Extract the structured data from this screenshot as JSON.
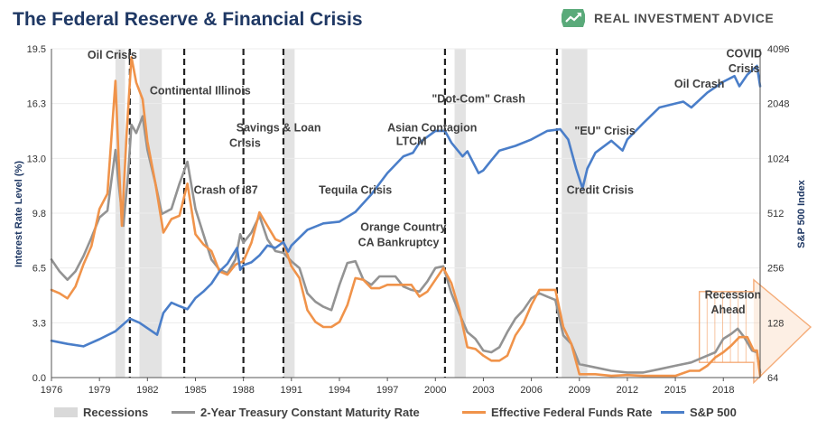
{
  "title": "The Federal Reserve & Financial Crisis",
  "brand": {
    "name": "REAL INVESTMENT ADVICE",
    "logo_icon": "trend-arrow-icon",
    "logo_color": "#5aaa7a"
  },
  "chart_data": {
    "type": "line",
    "title": "The Federal Reserve & Financial Crisis",
    "xlabel": "",
    "ylabel_left": "Interest Rate Level (%)",
    "ylabel_right": "S&P 500 Index",
    "x_range": [
      1976.0,
      2020.3
    ],
    "y_left_range": [
      0,
      19.5
    ],
    "y_right_range": [
      64,
      4096
    ],
    "y_right_scale": "log2",
    "x_ticks": [
      "1976",
      "1979",
      "1982",
      "1985",
      "1988",
      "1991",
      "1994",
      "1997",
      "2000",
      "2003",
      "2006",
      "2009",
      "2012",
      "2015",
      "2018"
    ],
    "x_tick_values": [
      1976,
      1979,
      1982,
      1985,
      1988,
      1991,
      1994,
      1997,
      2000,
      2003,
      2006,
      2009,
      2012,
      2015,
      2018
    ],
    "y_left_ticks": [
      "0.0",
      "3.3",
      "6.5",
      "9.8",
      "13.0",
      "16.3",
      "19.5"
    ],
    "y_left_tick_values": [
      0,
      3.25,
      6.5,
      9.75,
      13.0,
      16.25,
      19.5
    ],
    "y_right_ticks": [
      "64",
      "128",
      "256",
      "512",
      "1024",
      "2048",
      "4096"
    ],
    "y_right_tick_values": [
      64,
      128,
      256,
      512,
      1024,
      2048,
      4096
    ],
    "recessions": [
      [
        1980.0,
        1980.6
      ],
      [
        1981.5,
        1982.9
      ],
      [
        1990.5,
        1991.2
      ],
      [
        2001.2,
        2001.9
      ],
      [
        2007.9,
        2009.5
      ]
    ],
    "crisis_lines": [
      1980.9,
      1984.3,
      1988.0,
      1990.5,
      2000.6,
      2007.6
    ],
    "series": [
      {
        "name": "2-Year Treasury Constant Maturity Rate",
        "color": "#939393",
        "axis": "left",
        "x": [
          1976.0,
          1976.5,
          1977.0,
          1977.5,
          1978.0,
          1978.5,
          1979.0,
          1979.5,
          1980.0,
          1980.2,
          1980.5,
          1980.8,
          1981.0,
          1981.3,
          1981.7,
          1982.0,
          1982.5,
          1982.9,
          1983.5,
          1984.0,
          1984.5,
          1985.0,
          1985.5,
          1986.0,
          1986.5,
          1987.0,
          1987.5,
          1987.8,
          1988.0,
          1988.5,
          1989.0,
          1989.5,
          1990.0,
          1990.5,
          1991.0,
          1991.5,
          1992.0,
          1992.5,
          1993.0,
          1993.5,
          1994.0,
          1994.5,
          1995.0,
          1995.5,
          1996.0,
          1996.5,
          1997.0,
          1997.5,
          1998.0,
          1998.5,
          1999.0,
          1999.5,
          2000.0,
          2000.5,
          2001.0,
          2001.5,
          2002.0,
          2002.5,
          2003.0,
          2003.5,
          2004.0,
          2004.5,
          2005.0,
          2005.5,
          2006.0,
          2006.5,
          2007.0,
          2007.5,
          2008.0,
          2008.5,
          2009.0,
          2010.0,
          2011.0,
          2012.0,
          2013.0,
          2014.0,
          2015.0,
          2016.0,
          2017.0,
          2017.5,
          2018.0,
          2018.5,
          2018.9,
          2019.3,
          2019.8,
          2020.1,
          2020.3
        ],
        "y": [
          7.0,
          6.3,
          5.8,
          6.3,
          7.2,
          8.3,
          9.5,
          9.9,
          13.5,
          11.5,
          9.0,
          12.2,
          15.0,
          14.5,
          15.5,
          13.5,
          11.5,
          9.7,
          10.0,
          11.5,
          12.8,
          10.0,
          8.5,
          7.0,
          6.4,
          6.2,
          7.0,
          8.5,
          8.0,
          8.6,
          9.6,
          8.2,
          7.5,
          7.4,
          6.9,
          6.5,
          5.0,
          4.5,
          4.2,
          4.0,
          5.5,
          6.8,
          6.9,
          5.8,
          5.5,
          6.0,
          6.0,
          6.0,
          5.4,
          5.2,
          5.1,
          5.7,
          6.5,
          6.6,
          5.0,
          3.8,
          2.7,
          2.3,
          1.6,
          1.5,
          1.8,
          2.7,
          3.5,
          4.0,
          4.7,
          5.0,
          4.8,
          4.6,
          2.5,
          2.0,
          0.8,
          0.6,
          0.4,
          0.3,
          0.3,
          0.5,
          0.7,
          0.9,
          1.3,
          1.5,
          2.3,
          2.6,
          2.9,
          2.4,
          1.6,
          1.5,
          0.3
        ]
      },
      {
        "name": "Effective Federal Funds Rate",
        "color": "#f0934a",
        "axis": "left",
        "x": [
          1976.0,
          1976.5,
          1977.0,
          1977.5,
          1978.0,
          1978.5,
          1979.0,
          1979.5,
          1980.0,
          1980.2,
          1980.4,
          1980.7,
          1981.0,
          1981.3,
          1981.7,
          1982.0,
          1982.5,
          1983.0,
          1983.5,
          1984.0,
          1984.5,
          1985.0,
          1985.5,
          1986.0,
          1986.5,
          1987.0,
          1987.5,
          1988.0,
          1988.5,
          1989.0,
          1989.5,
          1990.0,
          1990.5,
          1991.0,
          1991.5,
          1992.0,
          1992.5,
          1993.0,
          1993.5,
          1994.0,
          1994.5,
          1995.0,
          1995.5,
          1996.0,
          1996.5,
          1997.0,
          1997.5,
          1998.0,
          1998.5,
          1999.0,
          1999.5,
          2000.0,
          2000.5,
          2001.0,
          2001.5,
          2002.0,
          2002.5,
          2003.0,
          2003.5,
          2004.0,
          2004.5,
          2005.0,
          2005.5,
          2006.0,
          2006.5,
          2007.0,
          2007.5,
          2008.0,
          2008.5,
          2009.0,
          2010.0,
          2011.0,
          2012.0,
          2013.0,
          2014.0,
          2015.0,
          2015.9,
          2016.5,
          2017.0,
          2017.5,
          2018.0,
          2018.5,
          2019.0,
          2019.5,
          2019.9,
          2020.1,
          2020.3
        ],
        "y": [
          5.2,
          5.0,
          4.7,
          5.4,
          6.7,
          7.8,
          10.0,
          10.9,
          17.6,
          13.0,
          9.0,
          14.5,
          19.0,
          17.5,
          16.5,
          14.0,
          11.5,
          8.6,
          9.4,
          9.6,
          11.5,
          8.5,
          7.9,
          7.5,
          6.3,
          6.1,
          6.7,
          6.9,
          8.0,
          9.8,
          9.0,
          8.2,
          8.0,
          6.6,
          5.9,
          4.0,
          3.3,
          3.0,
          3.0,
          3.3,
          4.3,
          5.9,
          5.8,
          5.3,
          5.3,
          5.5,
          5.5,
          5.5,
          5.5,
          4.8,
          5.1,
          5.8,
          6.5,
          5.6,
          4.0,
          1.8,
          1.7,
          1.3,
          1.0,
          1.0,
          1.3,
          2.5,
          3.2,
          4.3,
          5.2,
          5.2,
          5.2,
          3.0,
          2.0,
          0.2,
          0.2,
          0.1,
          0.15,
          0.1,
          0.1,
          0.1,
          0.4,
          0.4,
          0.7,
          1.2,
          1.5,
          1.9,
          2.4,
          2.4,
          1.6,
          1.6,
          0.1
        ]
      },
      {
        "name": "S&P 500",
        "color": "#4a7ec9",
        "axis": "right",
        "x": [
          1976.0,
          1977.0,
          1978.0,
          1979.0,
          1980.0,
          1980.9,
          1981.5,
          1982.6,
          1983.0,
          1983.5,
          1984.0,
          1984.5,
          1985.0,
          1985.5,
          1986.0,
          1986.5,
          1987.0,
          1987.6,
          1987.8,
          1988.0,
          1988.5,
          1989.0,
          1989.5,
          1990.0,
          1990.5,
          1990.8,
          1991.0,
          1992.0,
          1993.0,
          1994.0,
          1995.0,
          1996.0,
          1997.0,
          1998.0,
          1998.6,
          1999.0,
          2000.0,
          2000.6,
          2001.0,
          2001.7,
          2002.0,
          2002.7,
          2003.0,
          2003.5,
          2004.0,
          2005.0,
          2006.0,
          2007.0,
          2007.8,
          2008.3,
          2008.8,
          2009.2,
          2009.5,
          2010.0,
          2011.0,
          2011.7,
          2012.0,
          2013.0,
          2014.0,
          2015.0,
          2015.5,
          2016.0,
          2017.0,
          2018.0,
          2018.7,
          2019.0,
          2019.5,
          2020.1,
          2020.3
        ],
        "y": [
          102,
          98,
          95,
          104,
          115,
          135,
          128,
          110,
          145,
          165,
          158,
          152,
          175,
          190,
          210,
          245,
          270,
          330,
          250,
          265,
          275,
          300,
          340,
          330,
          355,
          315,
          340,
          415,
          450,
          460,
          520,
          650,
          850,
          1050,
          1100,
          1250,
          1450,
          1450,
          1250,
          1050,
          1120,
          850,
          880,
          1000,
          1130,
          1200,
          1300,
          1450,
          1480,
          1300,
          900,
          700,
          900,
          1100,
          1280,
          1130,
          1300,
          1600,
          1950,
          2050,
          2100,
          1950,
          2350,
          2700,
          2900,
          2550,
          2950,
          3300,
          2550
        ]
      }
    ],
    "annotations": [
      {
        "text": "Oil Crisis",
        "x": 1979.8,
        "y": 18.9
      },
      {
        "text": "Continental Illinois",
        "x": 1985.3,
        "y": 16.8
      },
      {
        "text": "Savings & Loan",
        "x": 1990.2,
        "y": 14.6
      },
      {
        "text": "Crisis",
        "x": 1988.1,
        "y": 13.7
      },
      {
        "text": "Crash of '87",
        "x": 1986.9,
        "y": 10.9
      },
      {
        "text": "Tequila Crisis",
        "x": 1995.0,
        "y": 10.9
      },
      {
        "text": "Asian Contagion",
        "x": 1999.8,
        "y": 14.6
      },
      {
        "text": "LTCM",
        "x": 1998.5,
        "y": 13.8
      },
      {
        "text": "\"Dot-Com\" Crash",
        "x": 2002.7,
        "y": 16.3
      },
      {
        "text": "Orange Country",
        "x": 1998.0,
        "y": 8.7
      },
      {
        "text": "CA Bankruptcy",
        "x": 1997.7,
        "y": 7.8
      },
      {
        "text": "\"EU\" Crisis",
        "x": 2010.6,
        "y": 14.4
      },
      {
        "text": "Credit Crisis",
        "x": 2010.3,
        "y": 10.9
      },
      {
        "text": "Oil Crash",
        "x": 2016.5,
        "y": 17.2
      },
      {
        "text": "COVID",
        "x": 2019.3,
        "y": 19.0
      },
      {
        "text": "Crisis",
        "x": 2019.3,
        "y": 18.1
      },
      {
        "text": "Recession",
        "x": 2018.6,
        "y": 4.7
      },
      {
        "text": "Ahead",
        "x": 2018.3,
        "y": 3.8
      }
    ],
    "legend": {
      "placement": "bottom",
      "items": [
        {
          "label": "Recessions",
          "color": "#d9d9d9",
          "kind": "box"
        },
        {
          "label": "2-Year Treasury Constant Maturity Rate",
          "color": "#939393",
          "kind": "line"
        },
        {
          "label": "Effective Federal Funds Rate",
          "color": "#f0934a",
          "kind": "line"
        },
        {
          "label": "S&P 500",
          "color": "#4a7ec9",
          "kind": "line"
        }
      ]
    },
    "colors": {
      "recession_fill": "#e3e3e3",
      "crisis_line": "#222222",
      "forecast_arrow": "#f4a46c"
    }
  }
}
